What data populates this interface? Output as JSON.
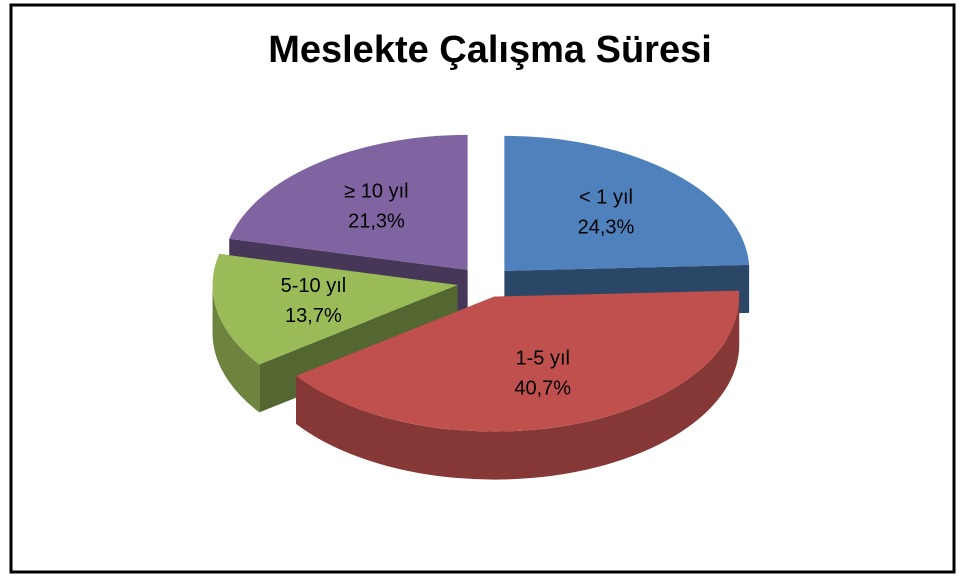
{
  "chart_data": {
    "type": "pie3d",
    "title": "Meslekte Çalışma Süresi",
    "categories": [
      "< 1 yıl",
      "1-5 yıl",
      "5-10 yıl",
      "≥ 10 yıl"
    ],
    "values": [
      24.3,
      40.7,
      13.7,
      21.3
    ],
    "value_labels": [
      "24,3%",
      "40,7%",
      "13,7%",
      "21,3%"
    ],
    "colors": [
      "#4f81bd",
      "#c0504d",
      "#9bbb59",
      "#8064a2"
    ]
  }
}
